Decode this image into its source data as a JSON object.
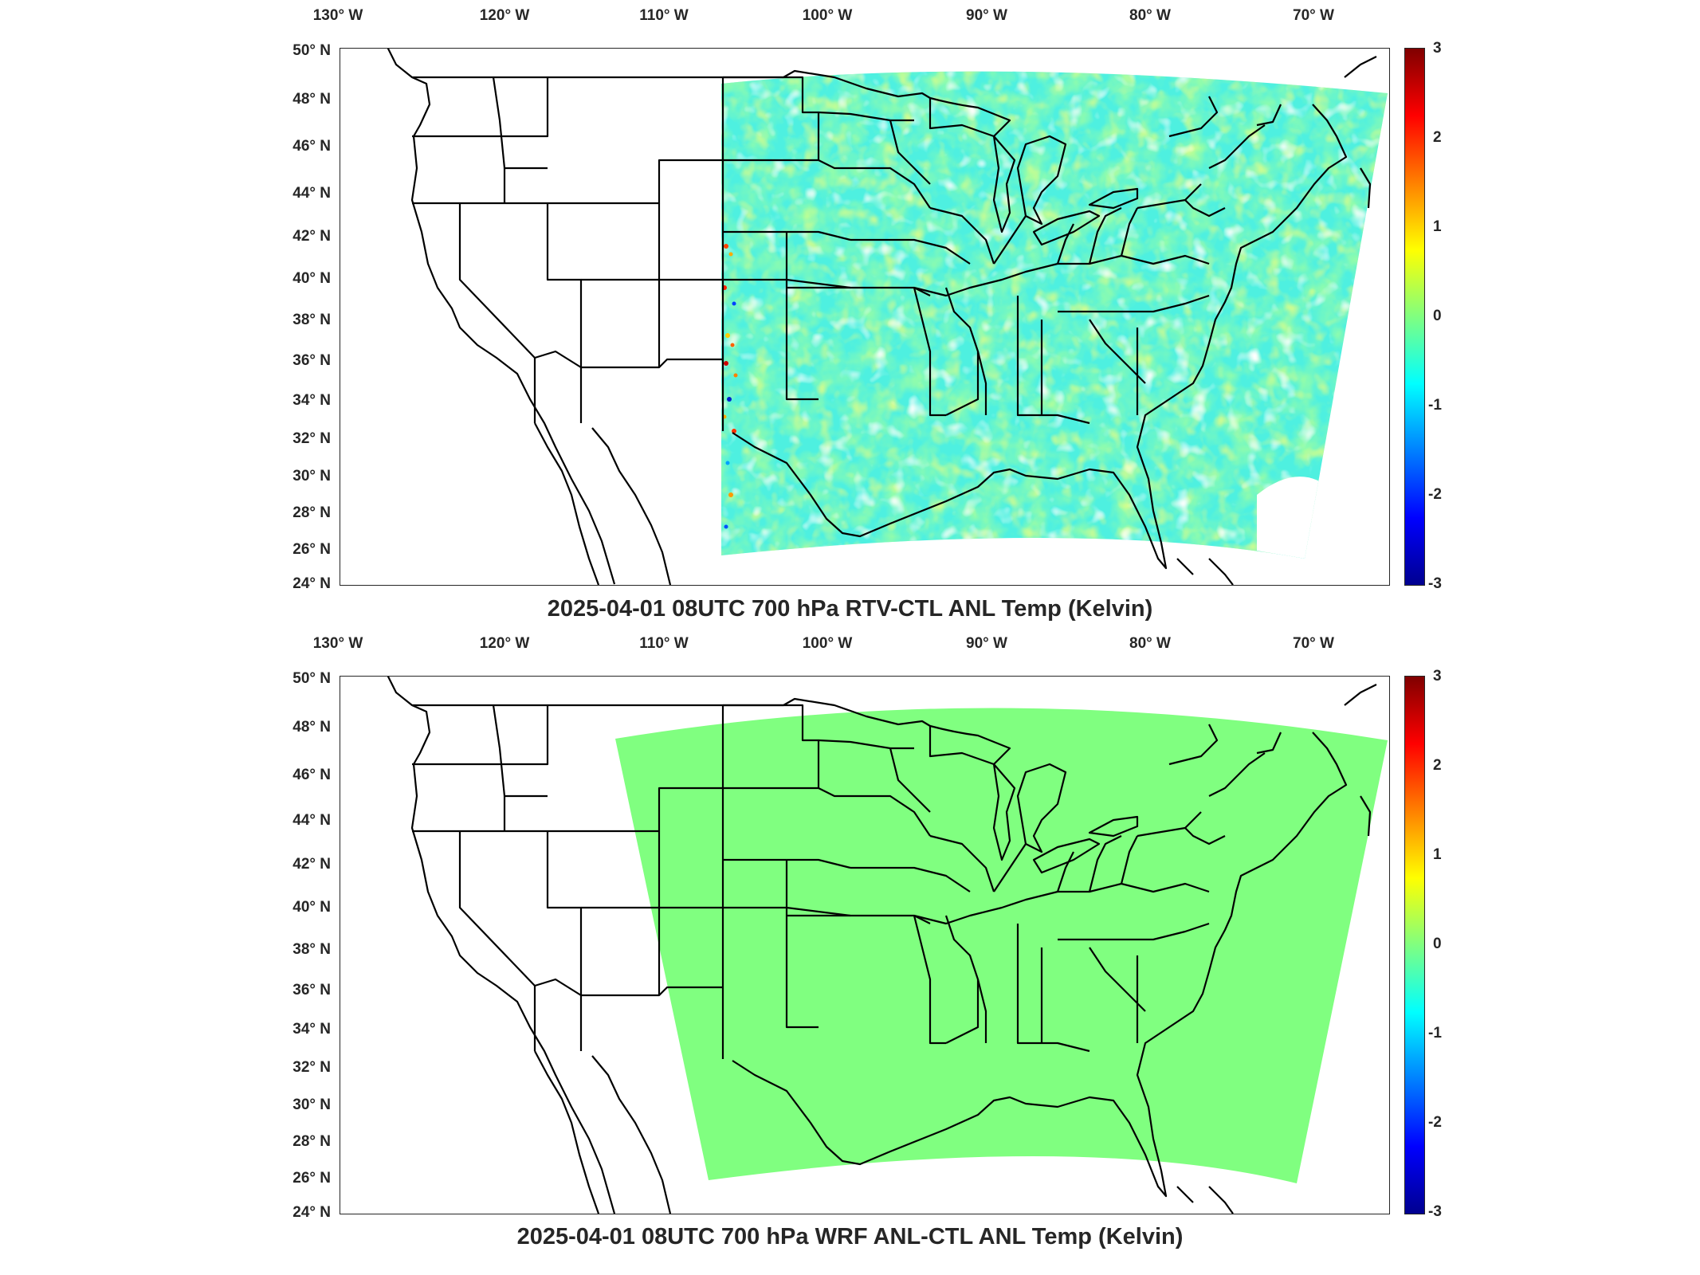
{
  "lon_ticks": [
    "130° W",
    "120° W",
    "110° W",
    "100° W",
    "90° W",
    "80° W",
    "70° W"
  ],
  "lat_ticks": [
    "50° N",
    "48° N",
    "46° N",
    "44° N",
    "42° N",
    "40° N",
    "38° N",
    "36° N",
    "34° N",
    "32° N",
    "30° N",
    "28° N",
    "26° N",
    "24° N"
  ],
  "colorbar": {
    "ticks": [
      "3",
      "2",
      "1",
      "0",
      "-1",
      "-2",
      "-3"
    ],
    "min": -3,
    "max": 3
  },
  "panels": [
    {
      "title": "2025-04-01 08UTC 700 hPa RTV-CTL ANL Temp (Kelvin)",
      "field": "noisy"
    },
    {
      "title": "2025-04-01 08UTC 700 hPa WRF ANL-CTL ANL Temp (Kelvin)",
      "field": "uniform"
    }
  ],
  "colors": {
    "uniform_fill": "#80ff80",
    "frame": "#262626"
  }
}
